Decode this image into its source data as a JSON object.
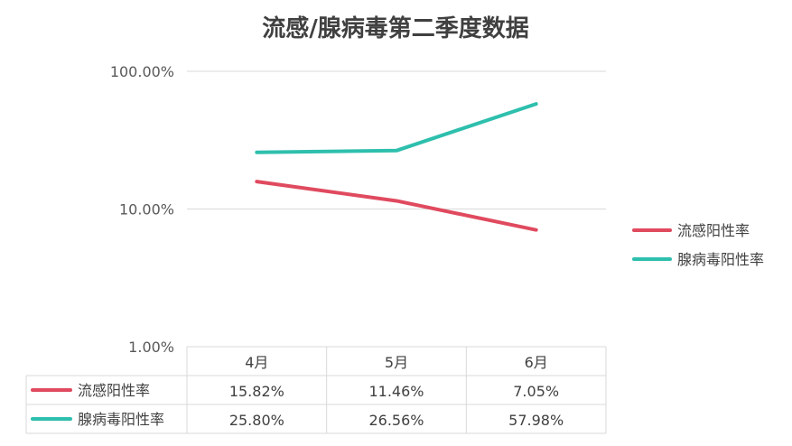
{
  "chart_data": {
    "type": "line",
    "title": "流感/腺病毒第二季度数据",
    "categories": [
      "4月",
      "5月",
      "6月"
    ],
    "yscale": "log",
    "ylim": [
      0.01,
      1.0
    ],
    "yticks": [
      "1.00%",
      "10.00%",
      "100.00%"
    ],
    "grid": true,
    "legend_position": "right",
    "data_table": true,
    "series": [
      {
        "name": "流感阳性率",
        "color": "#e04a5f",
        "values": [
          0.1582,
          0.1146,
          0.0705
        ],
        "labels": [
          "15.82%",
          "11.46%",
          "7.05%"
        ]
      },
      {
        "name": "腺病毒阳性率",
        "color": "#2ebfad",
        "values": [
          0.258,
          0.2656,
          0.5798
        ],
        "labels": [
          "25.80%",
          "26.56%",
          "57.98%"
        ]
      }
    ]
  }
}
